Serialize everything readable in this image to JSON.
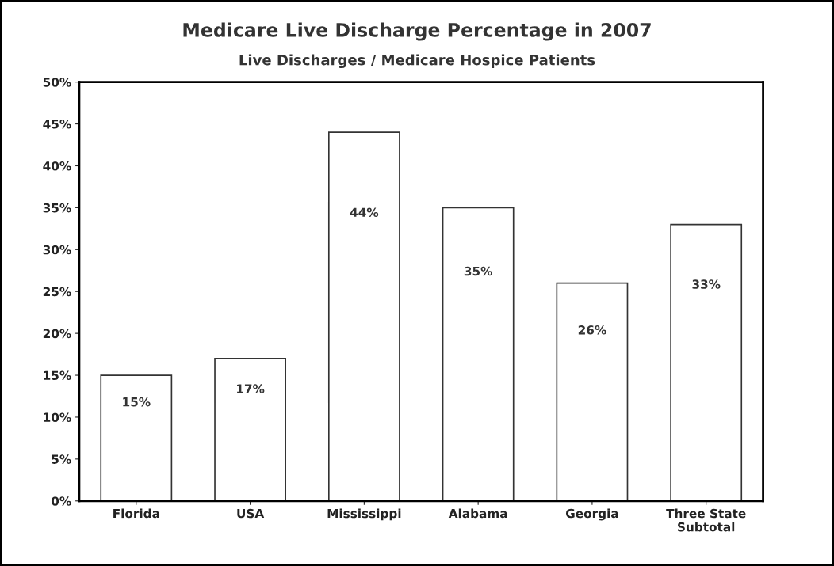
{
  "chart_data": {
    "type": "bar",
    "title": "Medicare Live Discharge Percentage in 2007",
    "subtitle": "Live Discharges / Medicare Hospice Patients",
    "categories": [
      "Florida",
      "USA",
      "Mississippi",
      "Alabama",
      "Georgia",
      "Three State\nSubtotal"
    ],
    "values": [
      15,
      17,
      44,
      35,
      26,
      33
    ],
    "value_labels": [
      "15%",
      "17%",
      "44%",
      "35%",
      "26%",
      "33%"
    ],
    "color": "#ffffff",
    "ylim": [
      0,
      50
    ],
    "yticks": [
      {
        "value": 0,
        "label": "0%"
      },
      {
        "value": 5,
        "label": "5%"
      },
      {
        "value": 10,
        "label": "10%"
      },
      {
        "value": 15,
        "label": "15%"
      },
      {
        "value": 20,
        "label": "20%"
      },
      {
        "value": 25,
        "label": "25%"
      },
      {
        "value": 30,
        "label": "30%"
      },
      {
        "value": 35,
        "label": "35%"
      },
      {
        "value": 40,
        "label": "40%"
      },
      {
        "value": 45,
        "label": "45%"
      },
      {
        "value": 50,
        "label": "50%"
      }
    ],
    "grid": false,
    "legend": false
  }
}
